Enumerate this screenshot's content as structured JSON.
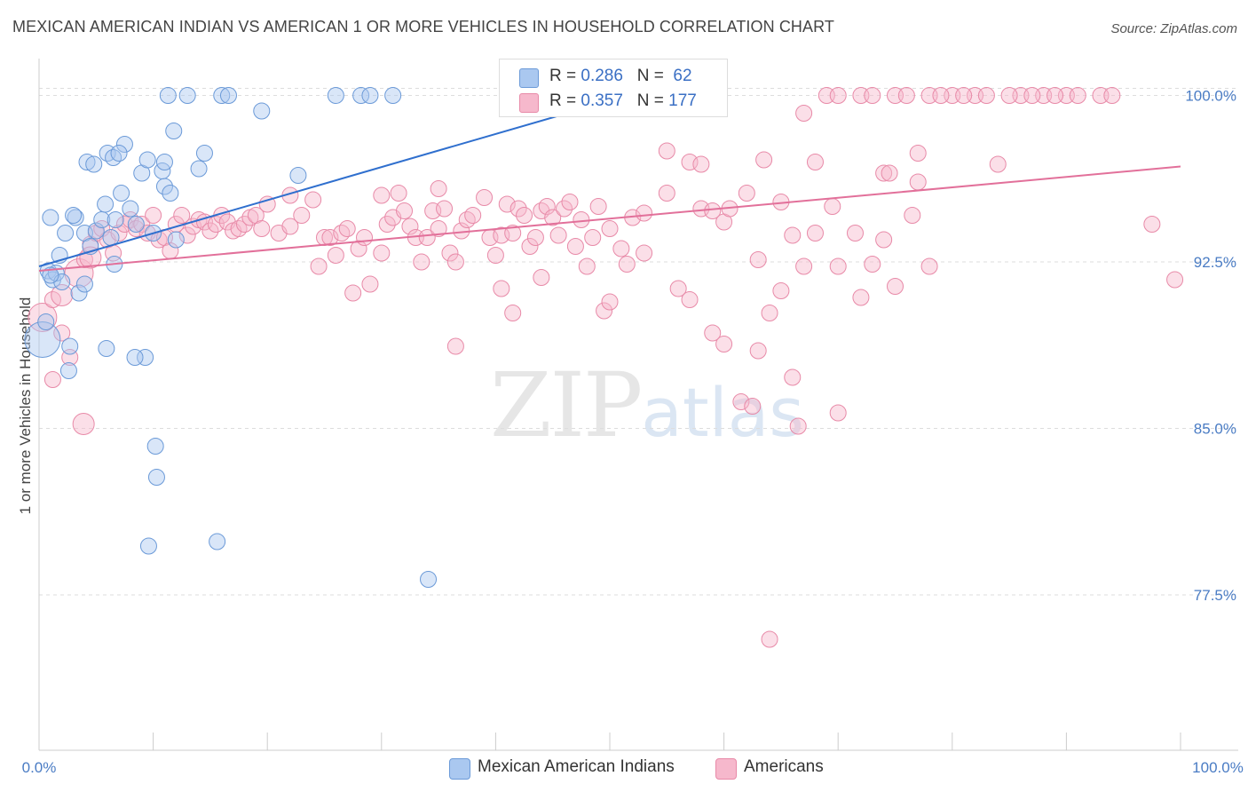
{
  "title": "MEXICAN AMERICAN INDIAN VS AMERICAN 1 OR MORE VEHICLES IN HOUSEHOLD CORRELATION CHART",
  "source": "Source: ZipAtlas.com",
  "watermark": {
    "zip": "ZIP",
    "atlas": "atlas"
  },
  "legend": {
    "series1": {
      "r_label": "R = ",
      "r_value": "0.286",
      "n_label": "N = ",
      "n_value": "62"
    },
    "series2": {
      "r_label": "R = ",
      "r_value": "0.357",
      "n_label": "N = ",
      "n_value": "177"
    }
  },
  "colors": {
    "blue_fill": "#aac8f0",
    "blue_stroke": "#6b9ad8",
    "blue_line": "#2f6fce",
    "pink_fill": "#f6b8cc",
    "pink_stroke": "#e88aa8",
    "pink_line": "#e2709a",
    "grid": "#dddddd",
    "tick_text": "#4a7cc4"
  },
  "chart_data": {
    "type": "scatter",
    "title": "MEXICAN AMERICAN INDIAN VS AMERICAN 1 OR MORE VEHICLES IN HOUSEHOLD CORRELATION CHART",
    "xlabel": "",
    "ylabel": "1 or more Vehicles in Household",
    "xlim": [
      0,
      100
    ],
    "ylim": [
      70.5,
      101.5
    ],
    "x_tick_labels": [
      "0.0%",
      "100.0%"
    ],
    "y_ticks": [
      77.5,
      85.0,
      92.5,
      100.0
    ],
    "y_tick_labels": [
      "77.5%",
      "85.0%",
      "92.5%",
      "100.0%"
    ],
    "grid": true,
    "legend_position": "bottom",
    "series": [
      {
        "name": "Mexican American Indians",
        "color": "#aac8f0",
        "trend": {
          "x": [
            0,
            55
          ],
          "y": [
            92.3,
            100.5
          ]
        },
        "points": [
          [
            0.3,
            89.0,
            20
          ],
          [
            0.8,
            92.1,
            9
          ],
          [
            1.2,
            91.7,
            9
          ],
          [
            1.5,
            92.0,
            9
          ],
          [
            2.0,
            91.6,
            9
          ],
          [
            0.6,
            89.8,
            9
          ],
          [
            3.5,
            91.1,
            9
          ],
          [
            2.3,
            93.8,
            9
          ],
          [
            3.2,
            94.5,
            9
          ],
          [
            4.0,
            93.8,
            9
          ],
          [
            4.5,
            93.2,
            9
          ],
          [
            5.0,
            93.9,
            9
          ],
          [
            5.5,
            94.4,
            9
          ],
          [
            6.3,
            93.6,
            9
          ],
          [
            2.7,
            88.7,
            9
          ],
          [
            2.6,
            87.6,
            9
          ],
          [
            5.8,
            95.1,
            9
          ],
          [
            6.7,
            94.4,
            9
          ],
          [
            7.2,
            95.6,
            9
          ],
          [
            8.0,
            94.9,
            9
          ],
          [
            8.5,
            94.2,
            9
          ],
          [
            4.2,
            97.0,
            9
          ],
          [
            4.8,
            96.9,
            9
          ],
          [
            6.0,
            97.4,
            9
          ],
          [
            6.5,
            97.2,
            9
          ],
          [
            7.5,
            97.8,
            9
          ],
          [
            7.0,
            97.4,
            9
          ],
          [
            9.0,
            96.5,
            9
          ],
          [
            9.5,
            97.1,
            9
          ],
          [
            10.0,
            93.8,
            9
          ],
          [
            11.0,
            95.9,
            9
          ],
          [
            11.5,
            95.6,
            9
          ],
          [
            10.8,
            96.6,
            9
          ],
          [
            11.0,
            97.0,
            9
          ],
          [
            14.5,
            97.4,
            9
          ],
          [
            14.0,
            96.7,
            9
          ],
          [
            11.3,
            100.0,
            9
          ],
          [
            13.0,
            100.0,
            9
          ],
          [
            16.0,
            100.0,
            9
          ],
          [
            16.6,
            100.0,
            9
          ],
          [
            19.5,
            99.3,
            9
          ],
          [
            11.8,
            98.4,
            9
          ],
          [
            22.7,
            96.4,
            9
          ],
          [
            26.0,
            100.0,
            9
          ],
          [
            28.2,
            100.0,
            9
          ],
          [
            29.0,
            100.0,
            9
          ],
          [
            31.0,
            100.0,
            9
          ],
          [
            12.0,
            93.5,
            9
          ],
          [
            4.0,
            91.5,
            9
          ],
          [
            9.3,
            88.2,
            9
          ],
          [
            8.4,
            88.2,
            9
          ],
          [
            5.9,
            88.6,
            9
          ],
          [
            6.6,
            92.4,
            9
          ],
          [
            10.2,
            84.2,
            9
          ],
          [
            10.3,
            82.8,
            9
          ],
          [
            9.6,
            79.7,
            9
          ],
          [
            15.6,
            79.9,
            9
          ],
          [
            34.1,
            78.2,
            9
          ],
          [
            1.0,
            91.9,
            9
          ],
          [
            1.8,
            92.8,
            9
          ],
          [
            3.0,
            94.6,
            9
          ],
          [
            1.0,
            94.5,
            9
          ]
        ]
      },
      {
        "name": "Americans",
        "color": "#f6b8cc",
        "trend": {
          "x": [
            0,
            100
          ],
          "y": [
            92.1,
            96.8
          ]
        },
        "points": [
          [
            0.3,
            90.0,
            16
          ],
          [
            1.2,
            90.8,
            9
          ],
          [
            2.0,
            89.3,
            9
          ],
          [
            1.2,
            87.2,
            9
          ],
          [
            2.7,
            88.2,
            9
          ],
          [
            3.5,
            92.0,
            16
          ],
          [
            4.0,
            92.6,
            9
          ],
          [
            4.5,
            93.3,
            9
          ],
          [
            5.0,
            93.8,
            9
          ],
          [
            5.5,
            94.0,
            9
          ],
          [
            6.0,
            93.5,
            9
          ],
          [
            6.5,
            92.9,
            9
          ],
          [
            7.0,
            93.8,
            9
          ],
          [
            7.5,
            94.2,
            9
          ],
          [
            8.0,
            94.4,
            9
          ],
          [
            8.5,
            94.0,
            9
          ],
          [
            9.0,
            94.2,
            9
          ],
          [
            9.5,
            93.8,
            9
          ],
          [
            10.0,
            94.6,
            9
          ],
          [
            10.5,
            93.5,
            9
          ],
          [
            11.0,
            93.6,
            9
          ],
          [
            11.5,
            93.0,
            9
          ],
          [
            12.0,
            94.2,
            9
          ],
          [
            12.5,
            94.6,
            9
          ],
          [
            13.0,
            93.7,
            9
          ],
          [
            13.5,
            94.1,
            9
          ],
          [
            14.0,
            94.4,
            9
          ],
          [
            14.5,
            94.3,
            9
          ],
          [
            15.0,
            93.9,
            9
          ],
          [
            15.5,
            94.2,
            9
          ],
          [
            16.0,
            94.6,
            9
          ],
          [
            16.5,
            94.3,
            9
          ],
          [
            17.0,
            93.9,
            9
          ],
          [
            17.5,
            94.0,
            9
          ],
          [
            18.0,
            94.2,
            9
          ],
          [
            18.5,
            94.5,
            9
          ],
          [
            19.0,
            94.6,
            9
          ],
          [
            19.5,
            94.0,
            9
          ],
          [
            20.0,
            95.1,
            9
          ],
          [
            21.0,
            93.8,
            9
          ],
          [
            22.0,
            94.1,
            9
          ],
          [
            23.0,
            94.6,
            9
          ],
          [
            24.0,
            95.3,
            9
          ],
          [
            24.5,
            92.3,
            9
          ],
          [
            25.0,
            93.6,
            9
          ],
          [
            25.5,
            93.6,
            9
          ],
          [
            26.0,
            92.8,
            9
          ],
          [
            26.5,
            93.8,
            9
          ],
          [
            27.0,
            94.0,
            9
          ],
          [
            28.0,
            93.1,
            9
          ],
          [
            28.5,
            93.6,
            9
          ],
          [
            29.0,
            91.5,
            9
          ],
          [
            30.0,
            92.9,
            9
          ],
          [
            30.5,
            94.2,
            9
          ],
          [
            31.0,
            94.5,
            9
          ],
          [
            31.5,
            95.6,
            9
          ],
          [
            32.0,
            94.8,
            9
          ],
          [
            32.5,
            94.1,
            9
          ],
          [
            33.0,
            93.6,
            9
          ],
          [
            33.5,
            92.5,
            9
          ],
          [
            34.0,
            93.6,
            9
          ],
          [
            34.5,
            94.8,
            9
          ],
          [
            35.0,
            94.0,
            9
          ],
          [
            35.5,
            94.9,
            9
          ],
          [
            36.0,
            92.9,
            9
          ],
          [
            36.5,
            92.5,
            9
          ],
          [
            37.0,
            93.9,
            9
          ],
          [
            37.5,
            94.4,
            9
          ],
          [
            38.0,
            94.6,
            9
          ],
          [
            39.0,
            95.4,
            9
          ],
          [
            39.5,
            93.6,
            9
          ],
          [
            40.0,
            92.8,
            9
          ],
          [
            40.5,
            93.7,
            9
          ],
          [
            41.0,
            95.1,
            9
          ],
          [
            41.5,
            93.8,
            9
          ],
          [
            42.0,
            94.9,
            9
          ],
          [
            42.5,
            94.6,
            9
          ],
          [
            43.0,
            93.2,
            9
          ],
          [
            43.5,
            93.6,
            9
          ],
          [
            44.0,
            94.8,
            9
          ],
          [
            44.5,
            95.0,
            9
          ],
          [
            45.0,
            94.5,
            9
          ],
          [
            45.5,
            93.7,
            9
          ],
          [
            46.0,
            94.9,
            9
          ],
          [
            46.5,
            95.2,
            9
          ],
          [
            47.0,
            93.2,
            9
          ],
          [
            47.5,
            94.4,
            9
          ],
          [
            48.0,
            92.3,
            9
          ],
          [
            48.5,
            93.6,
            9
          ],
          [
            49.0,
            95.0,
            9
          ],
          [
            50.0,
            94.0,
            9
          ],
          [
            51.0,
            93.1,
            9
          ],
          [
            52.0,
            94.5,
            9
          ],
          [
            53.0,
            94.7,
            9
          ],
          [
            55.0,
            95.6,
            9
          ],
          [
            56.0,
            91.3,
            9
          ],
          [
            57.0,
            90.8,
            9
          ],
          [
            58.0,
            94.9,
            9
          ],
          [
            59.0,
            94.8,
            9
          ],
          [
            60.0,
            94.3,
            9
          ],
          [
            62.0,
            95.6,
            9
          ],
          [
            63.0,
            92.6,
            9
          ],
          [
            65.0,
            95.2,
            9
          ],
          [
            66.0,
            93.7,
            9
          ],
          [
            67.0,
            92.3,
            9
          ],
          [
            68.0,
            93.8,
            9
          ],
          [
            70.0,
            92.3,
            9
          ],
          [
            72.0,
            90.9,
            9
          ],
          [
            73.0,
            92.4,
            9
          ],
          [
            74.0,
            93.5,
            9
          ],
          [
            75.0,
            91.4,
            9
          ],
          [
            77.0,
            96.1,
            9
          ],
          [
            80.0,
            100.0,
            9
          ],
          [
            82.0,
            100.0,
            9
          ],
          [
            84.0,
            96.9,
            9
          ],
          [
            86.0,
            100.0,
            9
          ],
          [
            88.0,
            100.0,
            9
          ],
          [
            90.0,
            100.0,
            9
          ],
          [
            93.0,
            100.0,
            9
          ],
          [
            97.5,
            94.2,
            9
          ],
          [
            99.5,
            91.7,
            9
          ],
          [
            22.0,
            95.5,
            9
          ],
          [
            27.5,
            91.1,
            9
          ],
          [
            30.0,
            95.5,
            9
          ],
          [
            35.0,
            95.8,
            9
          ],
          [
            36.5,
            88.7,
            9
          ],
          [
            40.5,
            91.3,
            9
          ],
          [
            41.5,
            90.2,
            9
          ],
          [
            44.0,
            91.8,
            9
          ],
          [
            49.5,
            90.3,
            9
          ],
          [
            50.0,
            90.7,
            9
          ],
          [
            51.5,
            92.4,
            9
          ],
          [
            53.0,
            92.9,
            9
          ],
          [
            57.0,
            97.0,
            9
          ],
          [
            58.0,
            96.9,
            9
          ],
          [
            59.0,
            89.3,
            9
          ],
          [
            60.0,
            88.8,
            9
          ],
          [
            61.5,
            86.2,
            9
          ],
          [
            62.5,
            86.0,
            9
          ],
          [
            63.0,
            88.5,
            9
          ],
          [
            63.5,
            97.1,
            9
          ],
          [
            64.0,
            90.2,
            9
          ],
          [
            65.0,
            91.2,
            9
          ],
          [
            66.0,
            87.3,
            9
          ],
          [
            67.0,
            99.2,
            9
          ],
          [
            68.0,
            97.0,
            9
          ],
          [
            69.0,
            100.0,
            9
          ],
          [
            70.0,
            100.0,
            9
          ],
          [
            72.0,
            100.0,
            9
          ],
          [
            73.0,
            100.0,
            9
          ],
          [
            74.0,
            96.5,
            9
          ],
          [
            75.0,
            100.0,
            9
          ],
          [
            76.0,
            100.0,
            9
          ],
          [
            77.0,
            97.4,
            9
          ],
          [
            78.0,
            100.0,
            9
          ],
          [
            79.0,
            100.0,
            9
          ],
          [
            81.0,
            100.0,
            9
          ],
          [
            83.0,
            100.0,
            9
          ],
          [
            85.0,
            100.0,
            9
          ],
          [
            87.0,
            100.0,
            9
          ],
          [
            89.0,
            100.0,
            9
          ],
          [
            91.0,
            100.0,
            9
          ],
          [
            94.0,
            100.0,
            9
          ],
          [
            66.5,
            85.1,
            9
          ],
          [
            70.0,
            85.7,
            9
          ],
          [
            64.0,
            75.5,
            9
          ],
          [
            54.5,
            99.4,
            9
          ],
          [
            3.9,
            85.2,
            12
          ],
          [
            2.0,
            91.0,
            12
          ],
          [
            4.5,
            92.7,
            12
          ],
          [
            71.5,
            93.8,
            9
          ],
          [
            74.5,
            96.5,
            9
          ],
          [
            76.5,
            94.6,
            9
          ],
          [
            78.0,
            92.3,
            9
          ],
          [
            69.5,
            95.0,
            9
          ],
          [
            60.5,
            94.9,
            9
          ],
          [
            55.0,
            97.5,
            9
          ]
        ]
      }
    ]
  }
}
